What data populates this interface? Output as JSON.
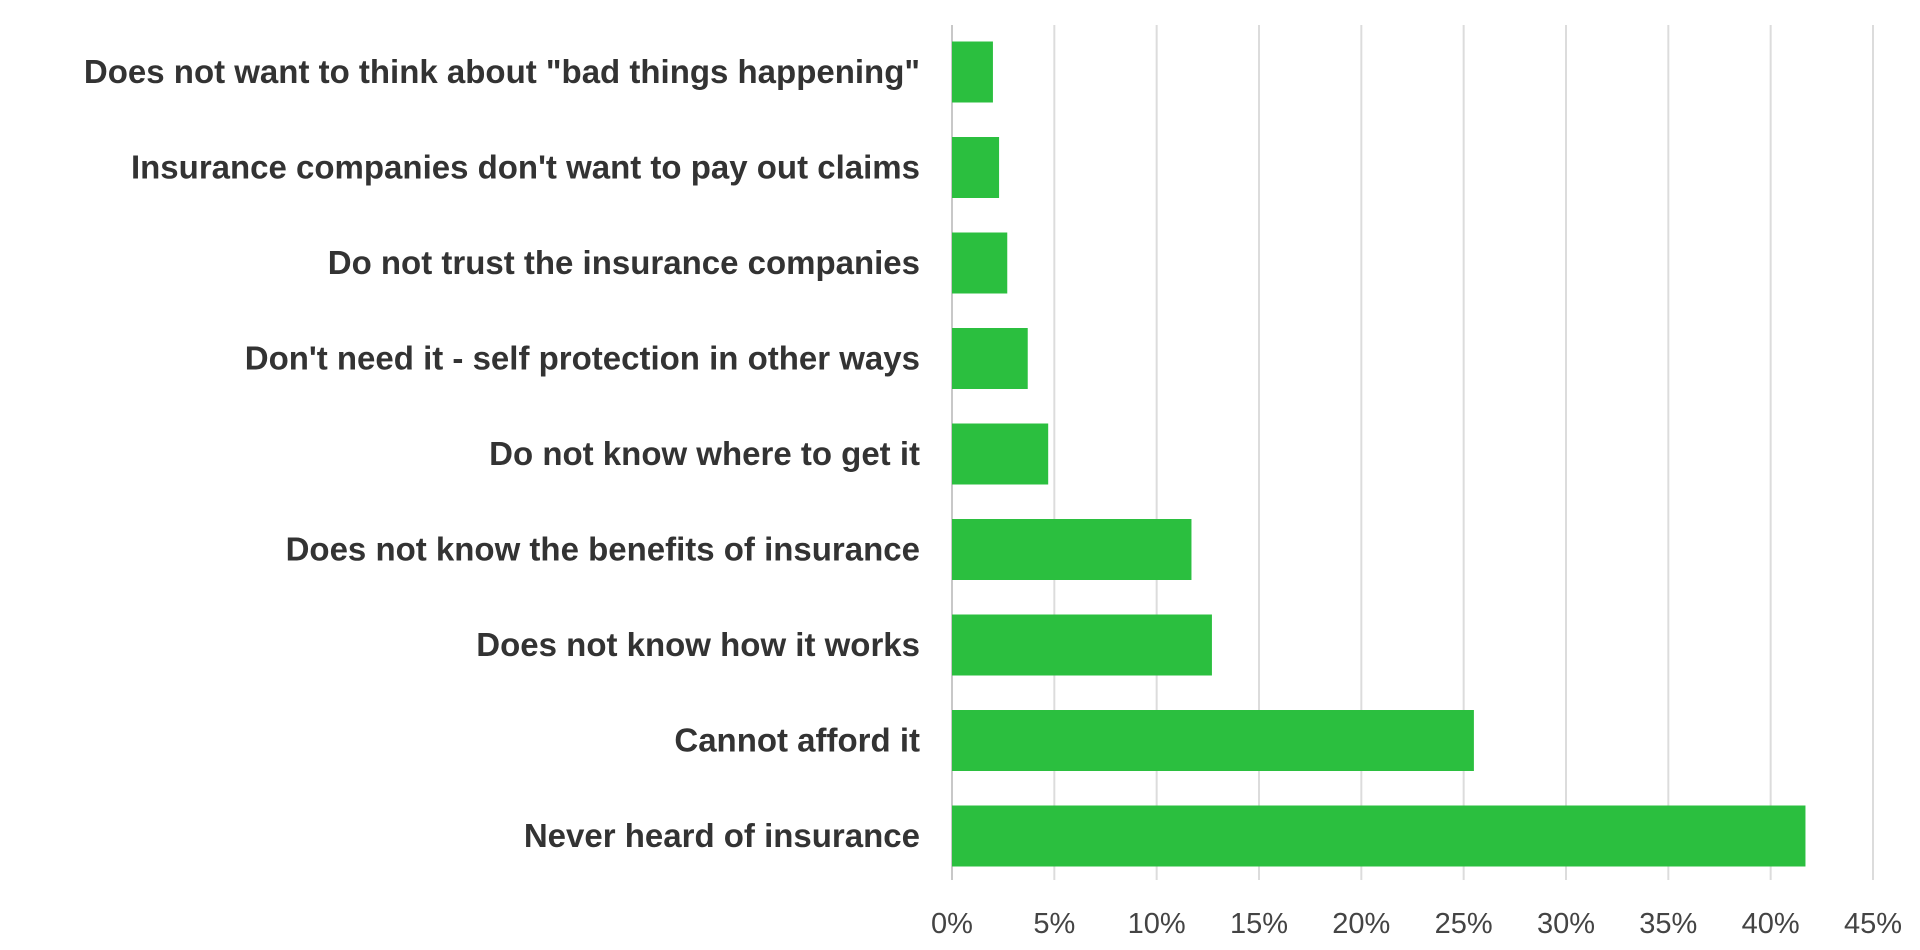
{
  "chart_data": {
    "type": "bar",
    "orientation": "horizontal",
    "title": "",
    "xlabel": "",
    "ylabel": "",
    "categories": [
      "Does not want to think about \"bad things happening\"",
      "Insurance companies don't want to pay out claims",
      "Do not trust the insurance companies",
      "Don't need it - self protection in other ways",
      "Do not know where to get it",
      "Does not know the benefits of insurance",
      "Does not know how it works",
      "Cannot afford it ",
      "Never heard of insurance"
    ],
    "values": [
      2.0,
      2.3,
      2.7,
      3.7,
      4.7,
      11.7,
      12.7,
      25.5,
      41.7
    ],
    "xlim": [
      0,
      45
    ],
    "ticks": [
      0,
      5,
      10,
      15,
      20,
      25,
      30,
      35,
      40,
      45
    ],
    "tick_labels": [
      "0%",
      "5%",
      "10%",
      "15%",
      "20%",
      "25%",
      "30%",
      "35%",
      "40%",
      "45%"
    ],
    "grid": true,
    "legend": "none",
    "bar_color": "#2bbf3f"
  }
}
